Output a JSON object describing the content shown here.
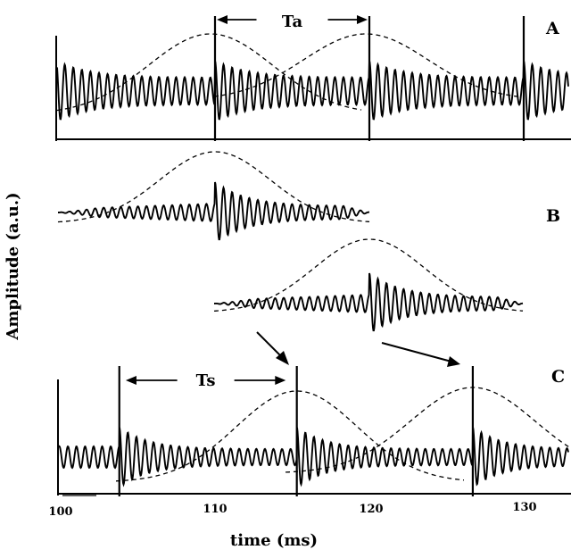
{
  "figure": {
    "panels": {
      "a": {
        "label": "A",
        "interval": "Ta"
      },
      "b": {
        "label": "B"
      },
      "c": {
        "label": "C",
        "interval": "Ts"
      }
    },
    "y_axis_title": "Amplitude (a.u.)",
    "x_axis_title": "time (ms)",
    "x_ticks": [
      "100",
      "110",
      "120",
      "130"
    ]
  },
  "colors": {
    "ink": "#000000",
    "paper": "#ffffff"
  },
  "chart_data": {
    "type": "line",
    "x_unit": "ms",
    "xlim": [
      100,
      133
    ],
    "panel_a": {
      "marker_times": [
        110.0,
        120.0,
        130.0
      ],
      "interval_span": [
        110.0,
        120.0
      ]
    },
    "panel_b": {
      "pulse_onsets": [
        110.0,
        120.0
      ]
    },
    "panel_c": {
      "marker_times": [
        103.8,
        115.3,
        126.7
      ],
      "interval_span": [
        104.1,
        114.7
      ]
    }
  }
}
